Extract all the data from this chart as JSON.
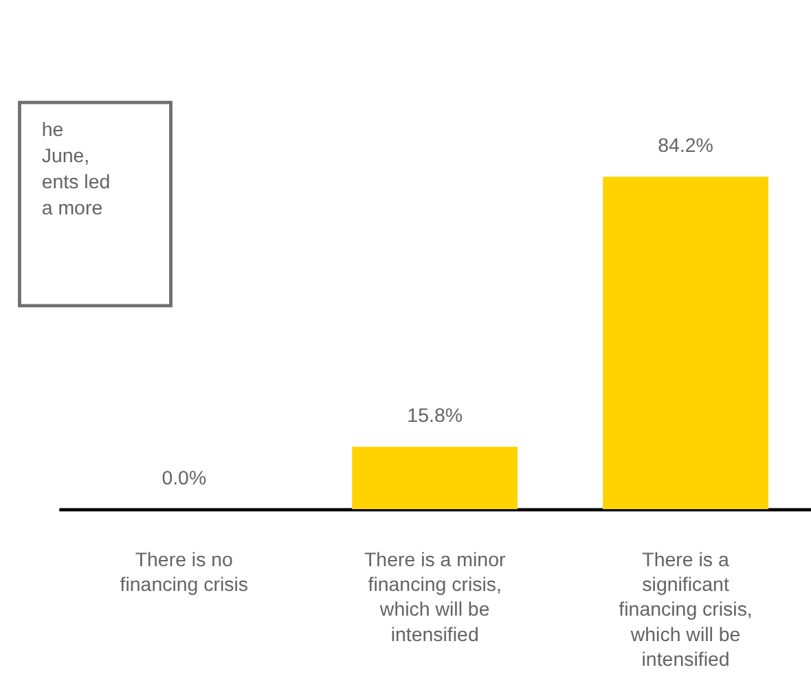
{
  "chart_data": {
    "type": "bar",
    "categories": [
      "There is no financing crisis",
      "There is a minor financing crisis, which will be intensified",
      "There is a significant financing crisis, which will be intensified"
    ],
    "values": [
      0.0,
      15.8,
      84.2
    ],
    "value_labels": [
      "0.0%",
      "15.8%",
      "84.2%"
    ],
    "color": "#ffd200",
    "annotations": [
      "he\nJune,\nents led\na more"
    ]
  }
}
